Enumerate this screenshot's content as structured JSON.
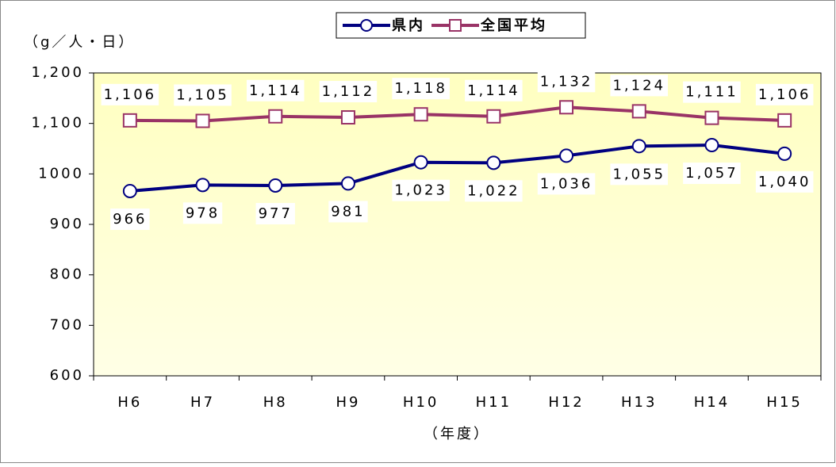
{
  "chart_data": {
    "type": "line",
    "y_label": "（g／人・日）",
    "x_label": "（年度）",
    "categories": [
      "H6",
      "H7",
      "H8",
      "H9",
      "H10",
      "H11",
      "H12",
      "H13",
      "H14",
      "H15"
    ],
    "series": [
      {
        "name": "県内",
        "color": "#000080",
        "marker": "circle",
        "values": [
          966,
          978,
          977,
          981,
          1023,
          1022,
          1036,
          1055,
          1057,
          1040
        ],
        "value_labels": [
          "966",
          "978",
          "977",
          "981",
          "1,023",
          "1,022",
          "1,036",
          "1,055",
          "1,057",
          "1,040"
        ]
      },
      {
        "name": "全国平均",
        "color": "#993366",
        "marker": "square",
        "values": [
          1106,
          1105,
          1114,
          1112,
          1118,
          1114,
          1132,
          1124,
          1111,
          1106
        ],
        "value_labels": [
          "1,106",
          "1,105",
          "1,114",
          "1,112",
          "1,118",
          "1,114",
          "1,132",
          "1,124",
          "1,111",
          "1,106"
        ]
      }
    ],
    "ylim": [
      600,
      1200
    ],
    "yticks": [
      600,
      700,
      800,
      900,
      1000,
      {
        "value": 1100,
        "label": "1,100"
      },
      {
        "value": 1200,
        "label": "1,200"
      }
    ],
    "legend": "top"
  }
}
